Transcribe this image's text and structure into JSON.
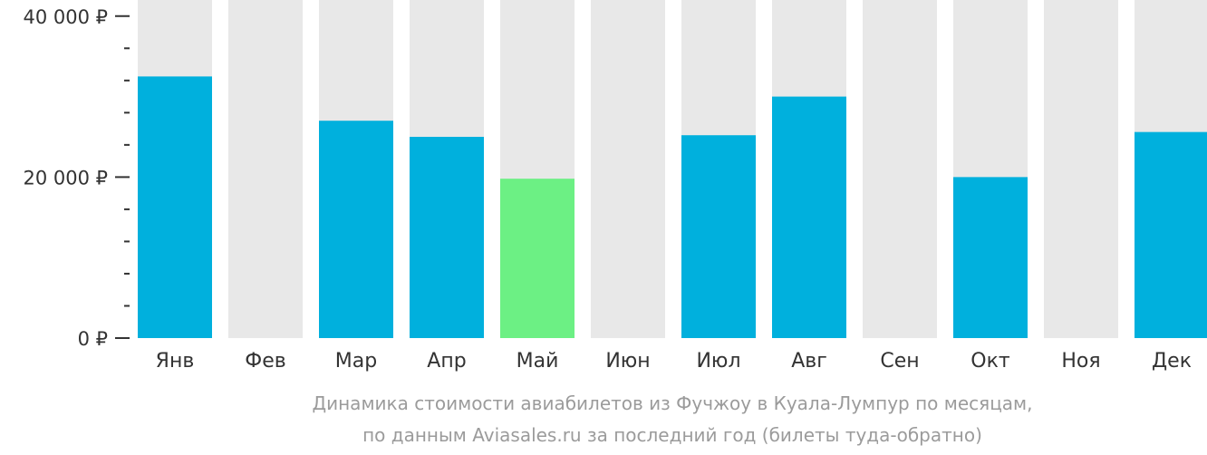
{
  "chart_data": {
    "type": "bar",
    "categories": [
      "Янв",
      "Фев",
      "Мар",
      "Апр",
      "Май",
      "Июн",
      "Июл",
      "Авг",
      "Сен",
      "Окт",
      "Ноя",
      "Дек"
    ],
    "values": [
      32500,
      null,
      27000,
      25000,
      19800,
      null,
      25200,
      30000,
      null,
      20000,
      null,
      25600
    ],
    "highlight_index": 4,
    "ylim": [
      0,
      42000
    ],
    "y_ticks": [
      {
        "value": 0,
        "label": "0 ₽"
      },
      {
        "value": 20000,
        "label": "20 000 ₽"
      },
      {
        "value": 40000,
        "label": "40 000 ₽"
      }
    ],
    "y_minor_tick_step": 4000,
    "colors": {
      "bar": "#00b0dd",
      "highlight": "#6cf084",
      "background_bar": "#e8e8e8",
      "axis_text": "#333333",
      "caption": "#9b9b9b"
    }
  },
  "caption": {
    "line1": "Динамика стоимости авиабилетов из Фучжоу в Куала-Лумпур по месяцам,",
    "line2": "по данным Aviasales.ru за последний год (билеты туда-обратно)"
  }
}
